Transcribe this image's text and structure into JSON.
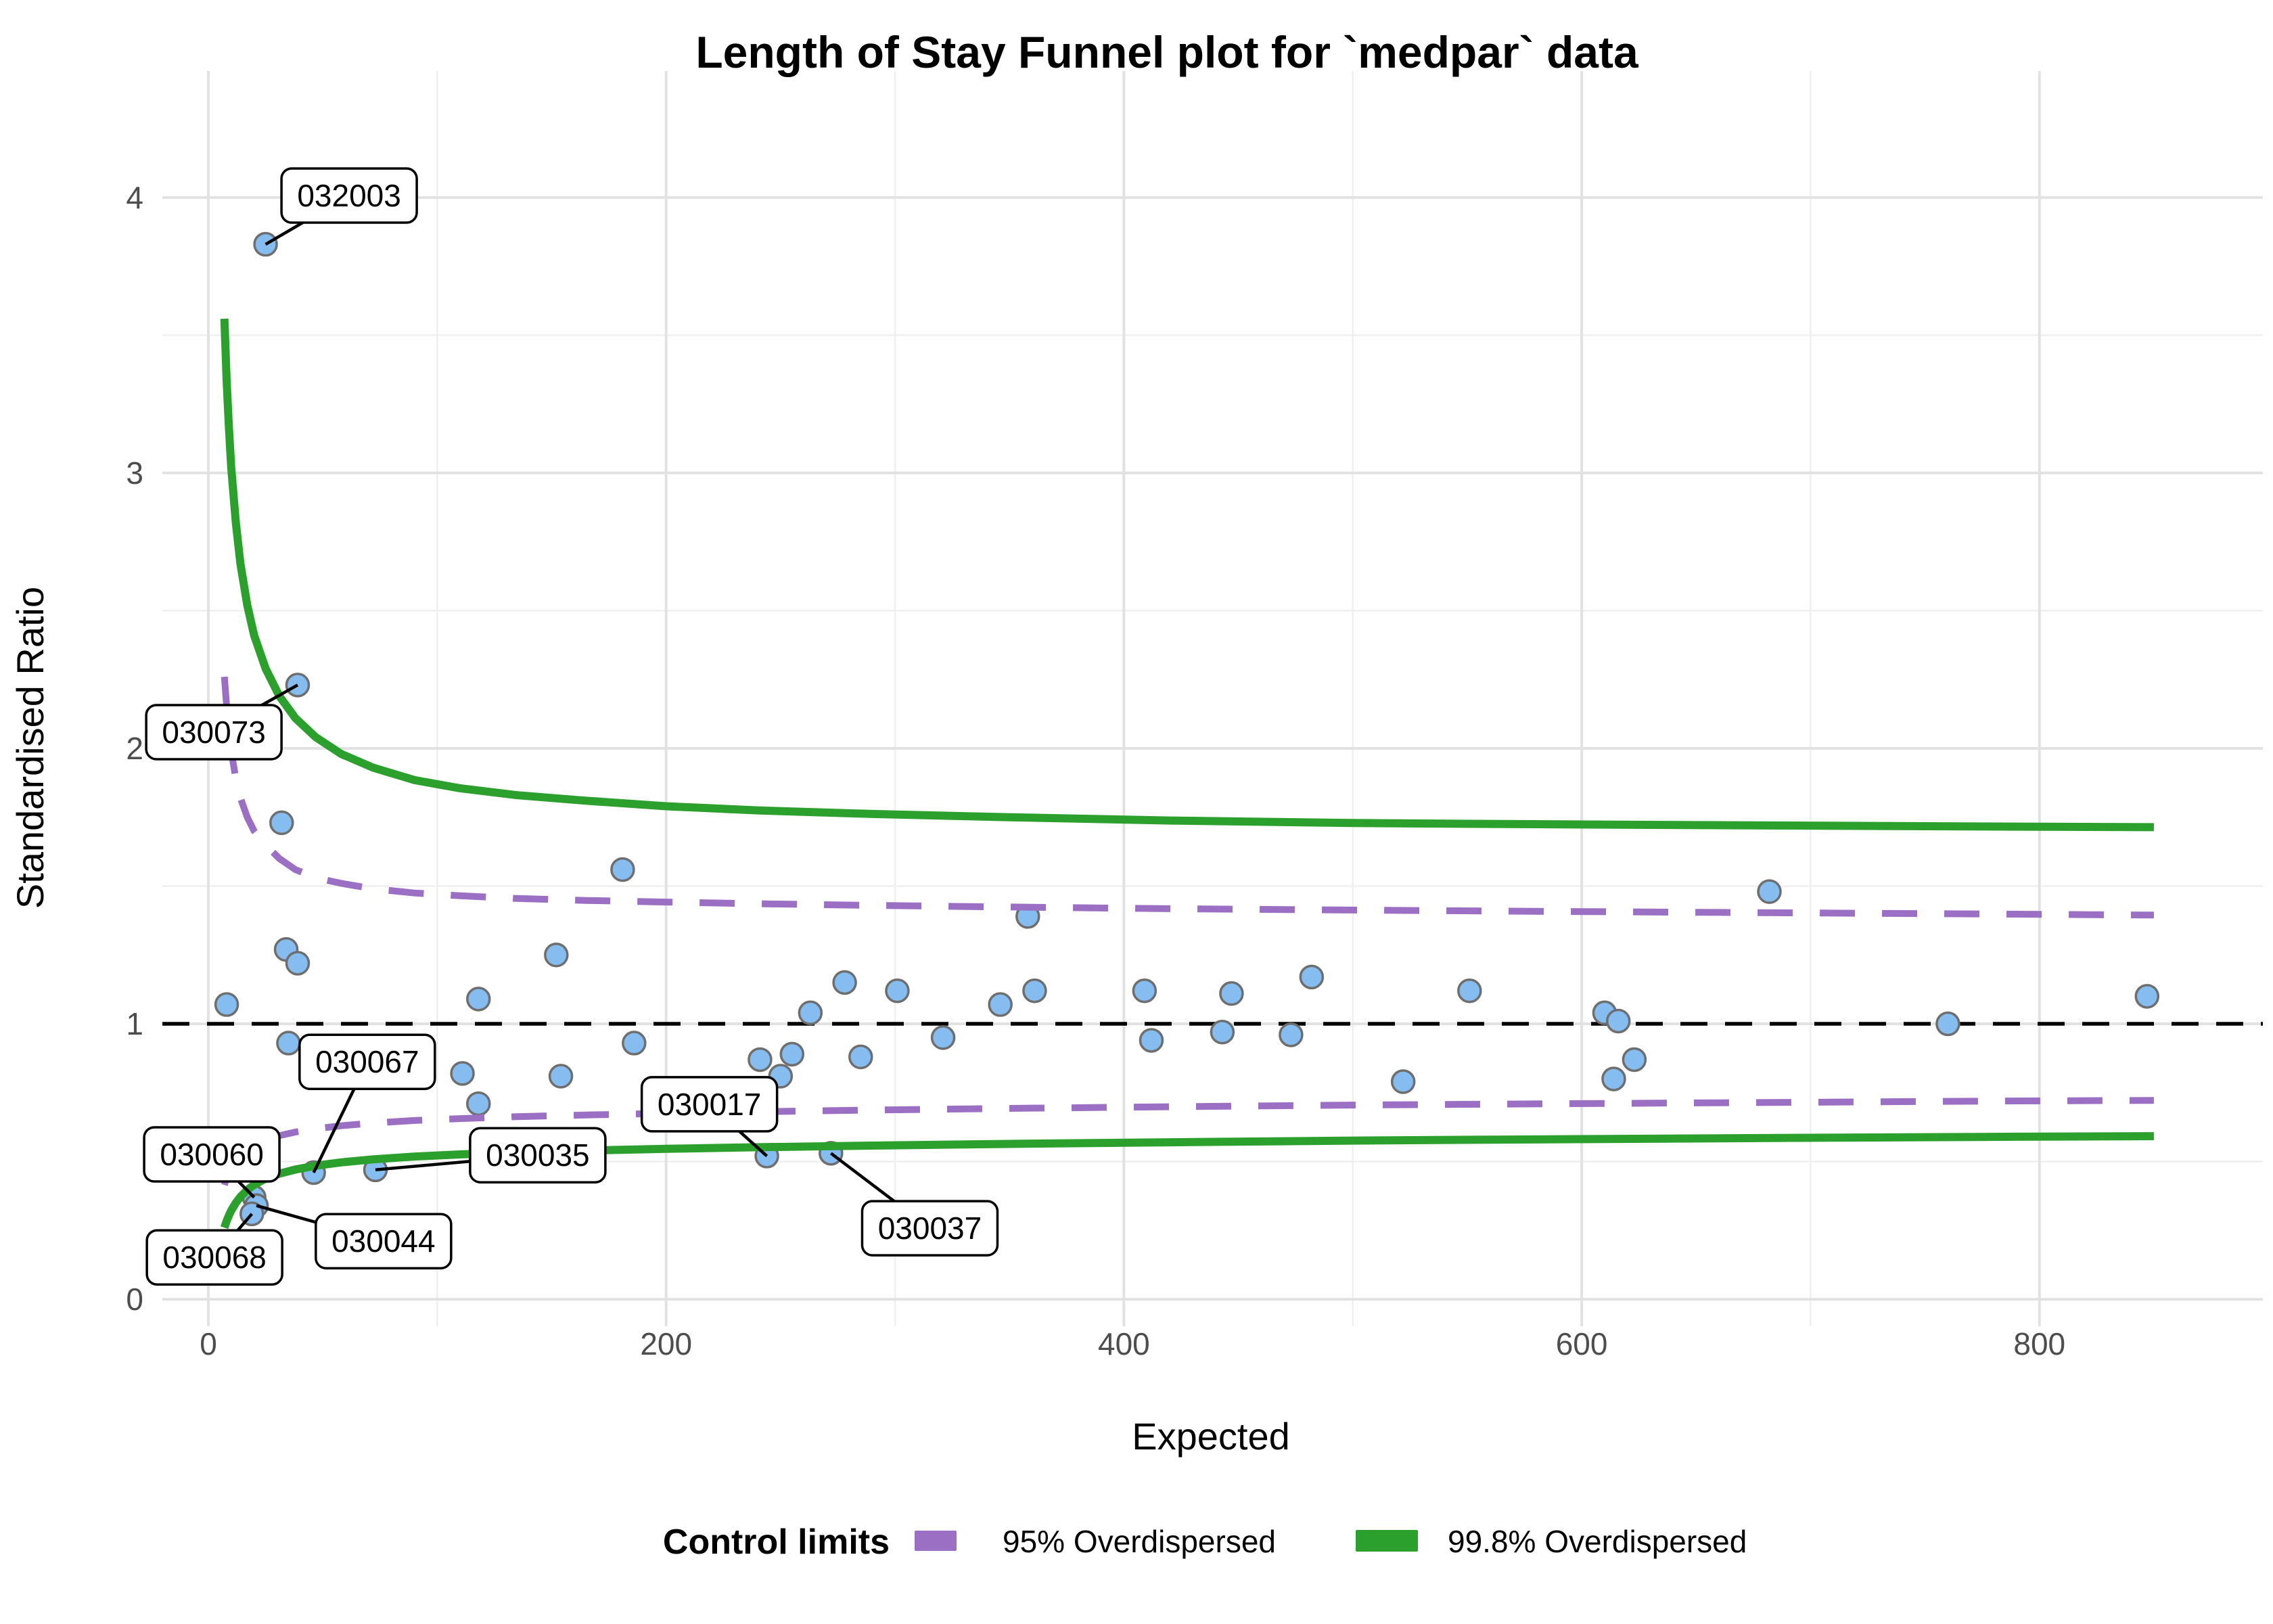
{
  "title": "Length of Stay Funnel plot for `medpar` data",
  "axis": {
    "x_label": "Expected",
    "y_label": "Standardised Ratio",
    "x_ticks": [
      0,
      200,
      400,
      600,
      800
    ],
    "y_ticks": [
      0,
      1,
      2,
      3,
      4
    ],
    "x_domain": [
      -20.1,
      897.6
    ],
    "y_domain": [
      -0.098,
      4.459
    ]
  },
  "legend": {
    "title": "Control limits",
    "items": [
      {
        "label": "95% Overdispersed",
        "color": "#9A6FC4",
        "dashed": true
      },
      {
        "label": "99.8% Overdispersed",
        "color": "#2CA02C",
        "dashed": false
      }
    ]
  },
  "colors": {
    "point_fill": "#85BDF0",
    "point_stroke": "#6E6E6E",
    "limit_95": "#9A6FC4",
    "limit_998": "#2CA02C",
    "reference": "#000000",
    "tick_label": "#4D4D4D"
  },
  "chart_data": {
    "type": "scatter",
    "title": "Length of Stay Funnel plot for `medpar` data",
    "xlabel": "Expected",
    "ylabel": "Standardised Ratio",
    "xlim": [
      -20,
      898
    ],
    "ylim": [
      -0.1,
      4.46
    ],
    "reference_y": 1,
    "points": [
      {
        "x": 25,
        "y": 3.83,
        "label": "032003"
      },
      {
        "x": 39,
        "y": 2.23,
        "label": "030073"
      },
      {
        "x": 32,
        "y": 1.73
      },
      {
        "x": 8,
        "y": 1.07
      },
      {
        "x": 34,
        "y": 1.27
      },
      {
        "x": 39,
        "y": 1.22
      },
      {
        "x": 35,
        "y": 0.93
      },
      {
        "x": 46,
        "y": 0.46,
        "label": "030067"
      },
      {
        "x": 20,
        "y": 0.37,
        "label": "030060"
      },
      {
        "x": 21,
        "y": 0.34,
        "label": "030044"
      },
      {
        "x": 19,
        "y": 0.31,
        "label": "030068"
      },
      {
        "x": 73,
        "y": 0.47,
        "label": "030035"
      },
      {
        "x": 111,
        "y": 0.82
      },
      {
        "x": 118,
        "y": 1.09
      },
      {
        "x": 118,
        "y": 0.71
      },
      {
        "x": 152,
        "y": 1.25
      },
      {
        "x": 154,
        "y": 0.81
      },
      {
        "x": 181,
        "y": 1.56
      },
      {
        "x": 186,
        "y": 0.93
      },
      {
        "x": 241,
        "y": 0.87
      },
      {
        "x": 250,
        "y": 0.81
      },
      {
        "x": 255,
        "y": 0.89
      },
      {
        "x": 263,
        "y": 1.04
      },
      {
        "x": 244,
        "y": 0.52,
        "label": "030017"
      },
      {
        "x": 272,
        "y": 0.53,
        "label": "030037"
      },
      {
        "x": 278,
        "y": 1.15
      },
      {
        "x": 285,
        "y": 0.88
      },
      {
        "x": 301,
        "y": 1.12
      },
      {
        "x": 321,
        "y": 0.95
      },
      {
        "x": 346,
        "y": 1.07
      },
      {
        "x": 358,
        "y": 1.39
      },
      {
        "x": 361,
        "y": 1.12
      },
      {
        "x": 409,
        "y": 1.12
      },
      {
        "x": 412,
        "y": 0.94
      },
      {
        "x": 443,
        "y": 0.97
      },
      {
        "x": 447,
        "y": 1.11
      },
      {
        "x": 473,
        "y": 0.96
      },
      {
        "x": 482,
        "y": 1.17
      },
      {
        "x": 522,
        "y": 0.79
      },
      {
        "x": 551,
        "y": 1.12
      },
      {
        "x": 610,
        "y": 1.04
      },
      {
        "x": 616,
        "y": 1.01
      },
      {
        "x": 614,
        "y": 0.8
      },
      {
        "x": 623,
        "y": 0.87
      },
      {
        "x": 682,
        "y": 1.48
      },
      {
        "x": 760,
        "y": 1.0
      },
      {
        "x": 847,
        "y": 1.1
      }
    ],
    "curves": [
      {
        "name": "upper_998",
        "legend": "99.8% Overdispersed",
        "color": "#2CA02C",
        "dashed": false,
        "xy": [
          [
            7,
            3.56
          ],
          [
            8,
            3.33
          ],
          [
            9,
            3.16
          ],
          [
            10,
            3.02
          ],
          [
            12,
            2.82
          ],
          [
            14,
            2.67
          ],
          [
            17,
            2.52
          ],
          [
            20,
            2.41
          ],
          [
            25,
            2.29
          ],
          [
            31,
            2.19
          ],
          [
            38,
            2.11
          ],
          [
            47,
            2.04
          ],
          [
            58,
            1.98
          ],
          [
            72,
            1.93
          ],
          [
            90,
            1.885
          ],
          [
            110,
            1.855
          ],
          [
            135,
            1.83
          ],
          [
            165,
            1.81
          ],
          [
            200,
            1.79
          ],
          [
            240,
            1.775
          ],
          [
            290,
            1.762
          ],
          [
            350,
            1.75
          ],
          [
            420,
            1.738
          ],
          [
            500,
            1.729
          ],
          [
            590,
            1.724
          ],
          [
            690,
            1.72
          ],
          [
            790,
            1.716
          ],
          [
            850,
            1.714
          ]
        ]
      },
      {
        "name": "upper_95",
        "legend": "95% Overdispersed",
        "color": "#9A6FC4",
        "dashed": true,
        "xy": [
          [
            7,
            2.26
          ],
          [
            8,
            2.15
          ],
          [
            9,
            2.06
          ],
          [
            10,
            1.99
          ],
          [
            12,
            1.89
          ],
          [
            14,
            1.82
          ],
          [
            17,
            1.75
          ],
          [
            20,
            1.7
          ],
          [
            25,
            1.65
          ],
          [
            31,
            1.6
          ],
          [
            38,
            1.56
          ],
          [
            47,
            1.53
          ],
          [
            58,
            1.51
          ],
          [
            72,
            1.49
          ],
          [
            90,
            1.475
          ],
          [
            110,
            1.465
          ],
          [
            135,
            1.455
          ],
          [
            165,
            1.448
          ],
          [
            200,
            1.442
          ],
          [
            240,
            1.436
          ],
          [
            290,
            1.43
          ],
          [
            350,
            1.424
          ],
          [
            420,
            1.418
          ],
          [
            500,
            1.413
          ],
          [
            590,
            1.408
          ],
          [
            690,
            1.403
          ],
          [
            790,
            1.398
          ],
          [
            850,
            1.395
          ]
        ]
      },
      {
        "name": "lower_95",
        "legend": "95% Overdispersed",
        "color": "#9A6FC4",
        "dashed": true,
        "xy": [
          [
            7,
            0.415
          ],
          [
            8,
            0.44
          ],
          [
            9,
            0.46
          ],
          [
            10,
            0.475
          ],
          [
            12,
            0.5
          ],
          [
            14,
            0.52
          ],
          [
            17,
            0.543
          ],
          [
            20,
            0.56
          ],
          [
            25,
            0.578
          ],
          [
            31,
            0.594
          ],
          [
            38,
            0.607
          ],
          [
            47,
            0.619
          ],
          [
            58,
            0.63
          ],
          [
            72,
            0.64
          ],
          [
            90,
            0.649
          ],
          [
            110,
            0.656
          ],
          [
            135,
            0.663
          ],
          [
            165,
            0.669
          ],
          [
            200,
            0.675
          ],
          [
            240,
            0.681
          ],
          [
            290,
            0.687
          ],
          [
            350,
            0.693
          ],
          [
            420,
            0.699
          ],
          [
            500,
            0.705
          ],
          [
            590,
            0.71
          ],
          [
            690,
            0.715
          ],
          [
            790,
            0.72
          ],
          [
            850,
            0.722
          ]
        ]
      },
      {
        "name": "lower_998",
        "legend": "99.8% Overdispersed",
        "color": "#2CA02C",
        "dashed": false,
        "xy": [
          [
            7,
            0.26
          ],
          [
            8,
            0.285
          ],
          [
            9,
            0.305
          ],
          [
            10,
            0.322
          ],
          [
            12,
            0.35
          ],
          [
            14,
            0.372
          ],
          [
            17,
            0.397
          ],
          [
            20,
            0.416
          ],
          [
            25,
            0.438
          ],
          [
            31,
            0.456
          ],
          [
            38,
            0.471
          ],
          [
            47,
            0.485
          ],
          [
            58,
            0.497
          ],
          [
            72,
            0.508
          ],
          [
            90,
            0.518
          ],
          [
            110,
            0.526
          ],
          [
            135,
            0.533
          ],
          [
            165,
            0.54
          ],
          [
            200,
            0.546
          ],
          [
            240,
            0.552
          ],
          [
            290,
            0.558
          ],
          [
            350,
            0.564
          ],
          [
            420,
            0.57
          ],
          [
            500,
            0.576
          ],
          [
            590,
            0.581
          ],
          [
            690,
            0.586
          ],
          [
            790,
            0.59
          ],
          [
            850,
            0.592
          ]
        ]
      }
    ],
    "annotations": [
      {
        "label": "032003",
        "point": [
          25,
          3.83
        ],
        "box": [
          61.5,
          4.007
        ]
      },
      {
        "label": "030073",
        "point": [
          39,
          2.23
        ],
        "box": [
          2.4,
          2.059
        ]
      },
      {
        "label": "030067",
        "point": [
          46,
          0.46
        ],
        "box": [
          69.4,
          0.862
        ]
      },
      {
        "label": "030060",
        "point": [
          20,
          0.37
        ],
        "box": [
          1.5,
          0.526
        ]
      },
      {
        "label": "030068",
        "point": [
          19,
          0.31
        ],
        "box": [
          2.7,
          0.152
        ]
      },
      {
        "label": "030044",
        "point": [
          21,
          0.34
        ],
        "box": [
          76.5,
          0.211
        ]
      },
      {
        "label": "030035",
        "point": [
          73,
          0.47
        ],
        "box": [
          143.9,
          0.523
        ]
      },
      {
        "label": "030017",
        "point": [
          244,
          0.52
        ],
        "box": [
          218.9,
          0.708
        ]
      },
      {
        "label": "030037",
        "point": [
          272,
          0.53
        ],
        "box": [
          315.2,
          0.258
        ]
      }
    ]
  }
}
